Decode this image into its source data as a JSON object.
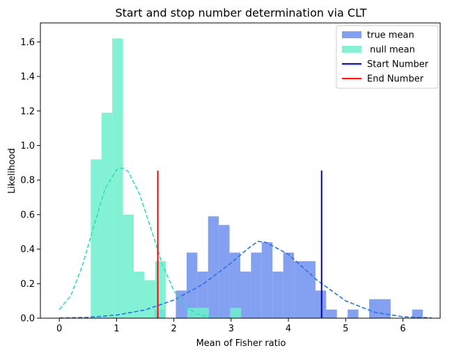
{
  "chart_data": {
    "type": "histogram",
    "title": "Start and stop number determination via CLT",
    "xlabel": "Mean of Fisher ratio",
    "ylabel": "Likelihood",
    "xlim": [
      -0.33,
      6.65
    ],
    "ylim": [
      0,
      1.71
    ],
    "xticks": [
      0,
      1,
      2,
      3,
      4,
      5,
      6
    ],
    "yticks": [
      0.0,
      0.2,
      0.4,
      0.6,
      0.8,
      1.0,
      1.2,
      1.4,
      1.6
    ],
    "legend_position": "upper right",
    "legend": [
      {
        "label": "true mean",
        "kind": "patch",
        "color": "#6e90ee"
      },
      {
        "label": " null mean",
        "kind": "patch",
        "color": "#6df0cc"
      },
      {
        "label": "Start Number",
        "kind": "line",
        "color": "#0000cc"
      },
      {
        "label": "End Number",
        "kind": "line",
        "color": "#ff0000"
      }
    ],
    "series": [
      {
        "name": "true mean",
        "kind": "histogram",
        "color": "#6e90ee",
        "bin_start": 1.66,
        "bin_width": 0.1875,
        "values": [
          0.05,
          0,
          0.16,
          0.38,
          0.27,
          0.59,
          0.54,
          0.38,
          0.27,
          0.38,
          0.44,
          0.27,
          0.38,
          0.33,
          0.33,
          0.16,
          0.05,
          0,
          0.05,
          0,
          0.11,
          0.11,
          0,
          0,
          0.05
        ]
      },
      {
        "name": " null mean",
        "kind": "histogram",
        "color": "#6df0cc",
        "bin_start": 0.55,
        "bin_width": 0.1875,
        "values": [
          0.92,
          1.19,
          1.62,
          0.6,
          0.27,
          0.22,
          0.33,
          0,
          0,
          0.06,
          0.06,
          0,
          0,
          0.06
        ]
      },
      {
        "name": "true mean fit",
        "kind": "dashed-line",
        "color": "#2f6fe0",
        "x": [
          0.0,
          0.5,
          1.0,
          1.5,
          2.0,
          2.5,
          3.0,
          3.3,
          3.47,
          3.6,
          4.0,
          4.5,
          5.0,
          5.5,
          6.0,
          6.5
        ],
        "y": [
          0.001,
          0.005,
          0.018,
          0.048,
          0.105,
          0.195,
          0.32,
          0.405,
          0.445,
          0.44,
          0.37,
          0.22,
          0.1,
          0.035,
          0.008,
          0.002
        ]
      },
      {
        "name": "null mean fit",
        "kind": "dashed-line",
        "color": "#2fe0b0",
        "x": [
          0.0,
          0.2,
          0.4,
          0.6,
          0.8,
          1.0,
          1.1,
          1.2,
          1.4,
          1.6,
          1.8,
          2.0,
          2.2,
          2.4,
          2.6,
          2.8,
          3.0
        ],
        "y": [
          0.05,
          0.13,
          0.3,
          0.53,
          0.75,
          0.86,
          0.87,
          0.85,
          0.72,
          0.52,
          0.31,
          0.16,
          0.07,
          0.025,
          0.008,
          0.002,
          0.0
        ]
      }
    ],
    "vlines": [
      {
        "name": "Start Number",
        "x": 4.58,
        "y": [
          0,
          0.855
        ],
        "color": "#0000cc"
      },
      {
        "name": "End Number",
        "x": 1.72,
        "y": [
          0,
          0.855
        ],
        "color": "#ff0000"
      }
    ]
  }
}
